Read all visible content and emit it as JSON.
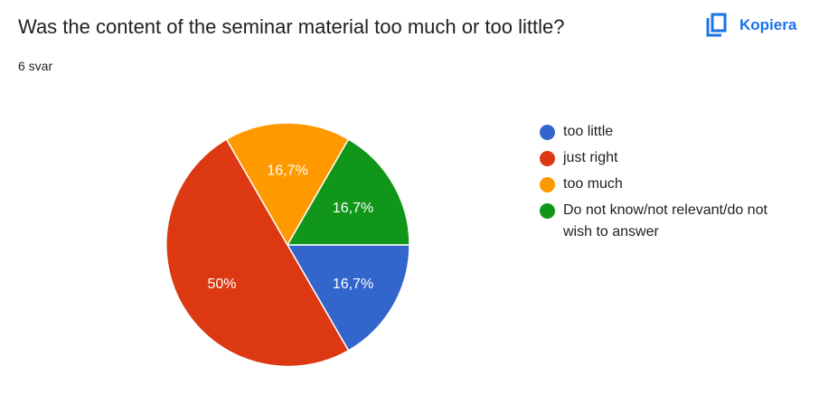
{
  "question": {
    "title": "Was the content of the seminar material too much or too little?",
    "response_count": "6 svar"
  },
  "toolbar": {
    "copy_label": "Kopiera",
    "copy_icon": "copy-icon"
  },
  "chart_data": {
    "type": "pie",
    "categories": [
      "too little",
      "just right",
      "too much",
      "Do not know/not relevant/do not wish to answer"
    ],
    "values": [
      1,
      3,
      1,
      1
    ],
    "percent_labels": [
      "16,7%",
      "50%",
      "16,7%",
      "16,7%"
    ],
    "colors": [
      "#3366cc",
      "#dc3912",
      "#ff9900",
      "#109618"
    ],
    "legend": {
      "position": "right",
      "entries": [
        "too little",
        "just right",
        "too much",
        "Do not know/not relevant/do not\nwish to answer"
      ]
    }
  }
}
